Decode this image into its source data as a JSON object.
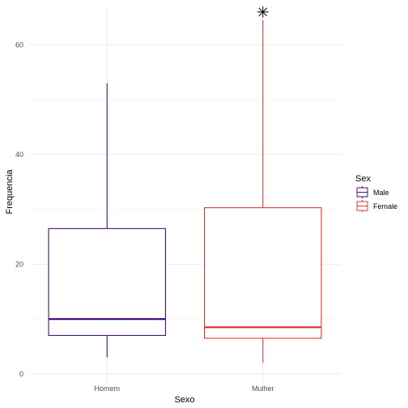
{
  "chart_data": {
    "type": "boxplot",
    "xlabel": "Sexo",
    "ylabel": "Frequencia",
    "categories": [
      "Homem",
      "Mulher"
    ],
    "ylim": [
      -1.5,
      67
    ],
    "yticks": [
      0,
      20,
      40,
      60
    ],
    "grid": true,
    "legend": {
      "title": "Sex",
      "position": "right",
      "entries": [
        {
          "label": "Male",
          "color": "#4b0f7a"
        },
        {
          "label": "Female",
          "color": "#d93b3b"
        }
      ]
    },
    "boxes": [
      {
        "category": "Homem",
        "min": 3,
        "q1": 7,
        "median": 10,
        "q3": 26.5,
        "max": 53,
        "color": "#4b0f7a",
        "outliers": []
      },
      {
        "category": "Mulher",
        "min": 2,
        "q1": 6.5,
        "median": 8.5,
        "q3": 30.3,
        "max": 64.5,
        "color": "#d93b3b",
        "outliers": [
          66
        ]
      }
    ]
  }
}
